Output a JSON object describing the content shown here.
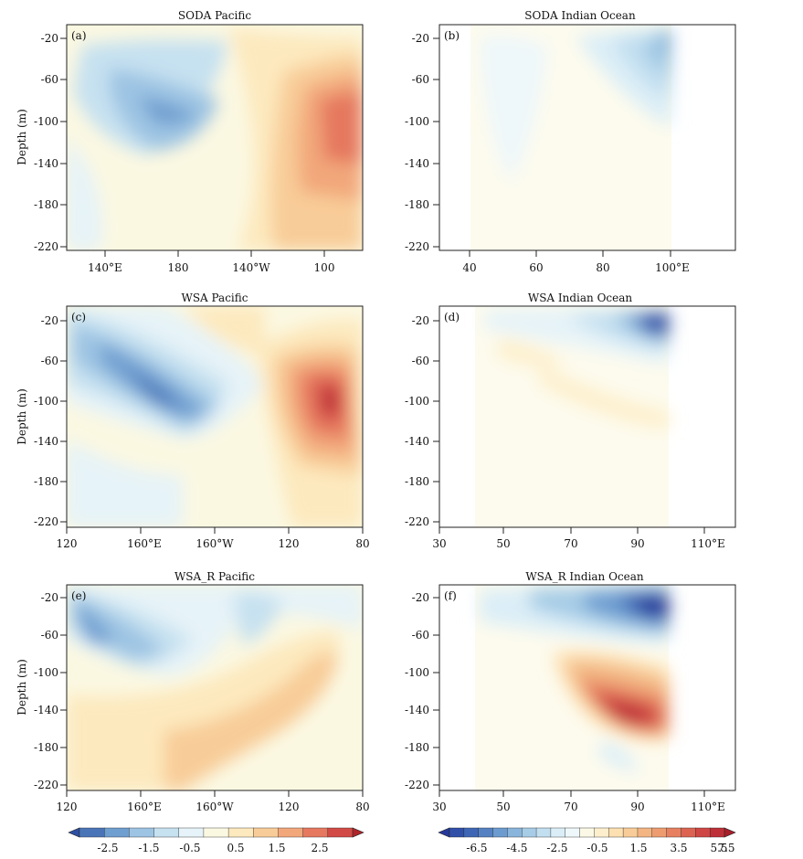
{
  "chart_data": [
    {
      "type": "heatmap",
      "panel_label": "(a)",
      "title": "SODA  Pacific",
      "ylabel": "Depth  (m)",
      "xlabel": "",
      "x_ticks": [
        "140°E",
        "180",
        "140°W",
        "100"
      ],
      "y_ticks": [
        "-20",
        "-60",
        "-100",
        "-140",
        "-180",
        "-220"
      ],
      "ylim": [
        -225,
        -5
      ],
      "colorbar": "left",
      "features": [
        {
          "sign": "neg",
          "value": -1.5,
          "note": "shallow cold tongue west/central"
        },
        {
          "sign": "pos",
          "value": 2.0,
          "note": "warm anomaly east, -60 to -180 m"
        }
      ]
    },
    {
      "type": "heatmap",
      "panel_label": "(b)",
      "title": "SODA  Indian  Ocean",
      "ylabel": "",
      "xlabel": "",
      "x_ticks": [
        "40",
        "60",
        "80",
        "100°E"
      ],
      "y_ticks": [
        "-20",
        "-60",
        "-100",
        "-140",
        "-180",
        "-220"
      ],
      "ylim": [
        -225,
        -5
      ],
      "colorbar": "left",
      "features": [
        {
          "sign": "neg",
          "value": -1.0,
          "note": "weak cold near 95-100E surface"
        }
      ]
    },
    {
      "type": "heatmap",
      "panel_label": "(c)",
      "title": "WSA  Pacific",
      "ylabel": "Depth  (m)",
      "xlabel": "",
      "x_ticks": [
        "120",
        "160°E",
        "160°W",
        "120",
        "80"
      ],
      "y_ticks": [
        "-20",
        "-60",
        "-100",
        "-140",
        "-180",
        "-220"
      ],
      "ylim": [
        -225,
        -5
      ],
      "colorbar": "left",
      "features": [
        {
          "sign": "neg",
          "value": -2.0,
          "note": "cold band sloping downward west to central"
        },
        {
          "sign": "pos",
          "value": 3.0,
          "note": "strong warm core near 100W, -100 m"
        }
      ]
    },
    {
      "type": "heatmap",
      "panel_label": "(d)",
      "title": "WSA  Indian  Ocean",
      "ylabel": "",
      "xlabel": "",
      "x_ticks": [
        "30",
        "50",
        "70",
        "90",
        "110°E"
      ],
      "y_ticks": [
        "-20",
        "-60",
        "-100",
        "-140",
        "-180",
        "-220"
      ],
      "ylim": [
        -225,
        -5
      ],
      "colorbar": "right",
      "features": [
        {
          "sign": "neg",
          "value": -6.0,
          "note": "strong cold near 95E surface"
        }
      ]
    },
    {
      "type": "heatmap",
      "panel_label": "(e)",
      "title": "WSA_R  Pacific",
      "ylabel": "Depth  (m)",
      "xlabel": "",
      "x_ticks": [
        "120",
        "160°E",
        "160°W",
        "120",
        "80"
      ],
      "y_ticks": [
        "-20",
        "-60",
        "-100",
        "-140",
        "-180",
        "-220"
      ],
      "ylim": [
        -225,
        -5
      ],
      "colorbar": "left",
      "features": [
        {
          "sign": "neg",
          "value": -2.0,
          "note": "cold in west near surface"
        },
        {
          "sign": "pos",
          "value": 1.5,
          "note": "warm band sloping up to the east"
        }
      ]
    },
    {
      "type": "heatmap",
      "panel_label": "(f)",
      "title": "WSA_R  Indian  Ocean",
      "ylabel": "",
      "xlabel": "",
      "x_ticks": [
        "30",
        "50",
        "70",
        "90",
        "110°E"
      ],
      "y_ticks": [
        "-20",
        "-60",
        "-100",
        "-140",
        "-180",
        "-220"
      ],
      "ylim": [
        -225,
        -5
      ],
      "colorbar": "right",
      "features": [
        {
          "sign": "neg",
          "value": -6.0,
          "note": "strong cold near surface 90-100E"
        },
        {
          "sign": "pos",
          "value": 7.0,
          "note": "strong warm core near 88E, -145 m"
        }
      ]
    }
  ],
  "colorbars": [
    {
      "side": "left",
      "labels": [
        "-2.5",
        "-1.5",
        "-0.5",
        "0.5",
        "1.5",
        "2.5"
      ],
      "colors": [
        "#2e4fa3",
        "#4a74b8",
        "#6f9ed0",
        "#9dc4e3",
        "#c6e1f0",
        "#e6f3f8",
        "#fbf8e2",
        "#fde9be",
        "#f8cc98",
        "#f2a77a",
        "#e5785f",
        "#d24a46",
        "#b0252c"
      ]
    },
    {
      "side": "right",
      "labels": [
        "-6.5",
        "-4.5",
        "-2.5",
        "-0.5",
        "1.5",
        "3.5",
        "5.5",
        "7.5"
      ],
      "colors": [
        "#26399a",
        "#3050a8",
        "#3e66b4",
        "#5581c2",
        "#6c9bd0",
        "#89b5dc",
        "#a6cce6",
        "#c2dff0",
        "#dbeef7",
        "#eef7fa",
        "#fbf9e6",
        "#fdefcc",
        "#fce0b1",
        "#f8cc98",
        "#f3b582",
        "#ed9c70",
        "#e68060",
        "#dc6352",
        "#cf4745",
        "#be3038",
        "#a81f2c"
      ]
    }
  ]
}
